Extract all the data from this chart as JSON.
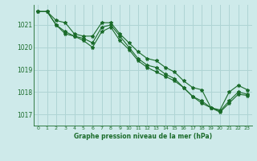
{
  "title": "Graphe pression niveau de la mer (hPa)",
  "bg_color": "#ceeaea",
  "grid_color": "#afd4d4",
  "line_color": "#1a6b2a",
  "xlim": [
    -0.5,
    23.5
  ],
  "ylim": [
    1016.5,
    1021.9
  ],
  "yticks": [
    1017,
    1018,
    1019,
    1020,
    1021
  ],
  "xticks": [
    0,
    1,
    2,
    3,
    4,
    5,
    6,
    7,
    8,
    9,
    10,
    11,
    12,
    13,
    14,
    15,
    16,
    17,
    18,
    19,
    20,
    21,
    22,
    23
  ],
  "series": [
    [
      1021.6,
      1021.6,
      1021.2,
      1021.1,
      1020.6,
      1020.5,
      1020.5,
      1021.1,
      1021.1,
      1020.6,
      1020.2,
      1019.8,
      1019.5,
      1019.4,
      1019.1,
      1018.9,
      1018.5,
      1018.2,
      1018.1,
      1017.3,
      1017.2,
      1018.0,
      1018.3,
      1018.1
    ],
    [
      1021.6,
      1021.6,
      1021.0,
      1020.7,
      1020.5,
      1020.4,
      1020.2,
      1020.9,
      1021.0,
      1020.5,
      1020.0,
      1019.5,
      1019.2,
      1019.1,
      1018.8,
      1018.6,
      1018.2,
      1017.8,
      1017.6,
      1017.3,
      1017.15,
      1017.6,
      1018.0,
      1017.9
    ],
    [
      1021.6,
      1021.6,
      1021.0,
      1020.6,
      1020.5,
      1020.3,
      1020.0,
      1020.7,
      1020.9,
      1020.3,
      1019.9,
      1019.4,
      1019.1,
      1018.9,
      1018.7,
      1018.5,
      1018.2,
      1017.8,
      1017.5,
      1017.3,
      1017.1,
      1017.5,
      1017.9,
      1017.85
    ]
  ]
}
